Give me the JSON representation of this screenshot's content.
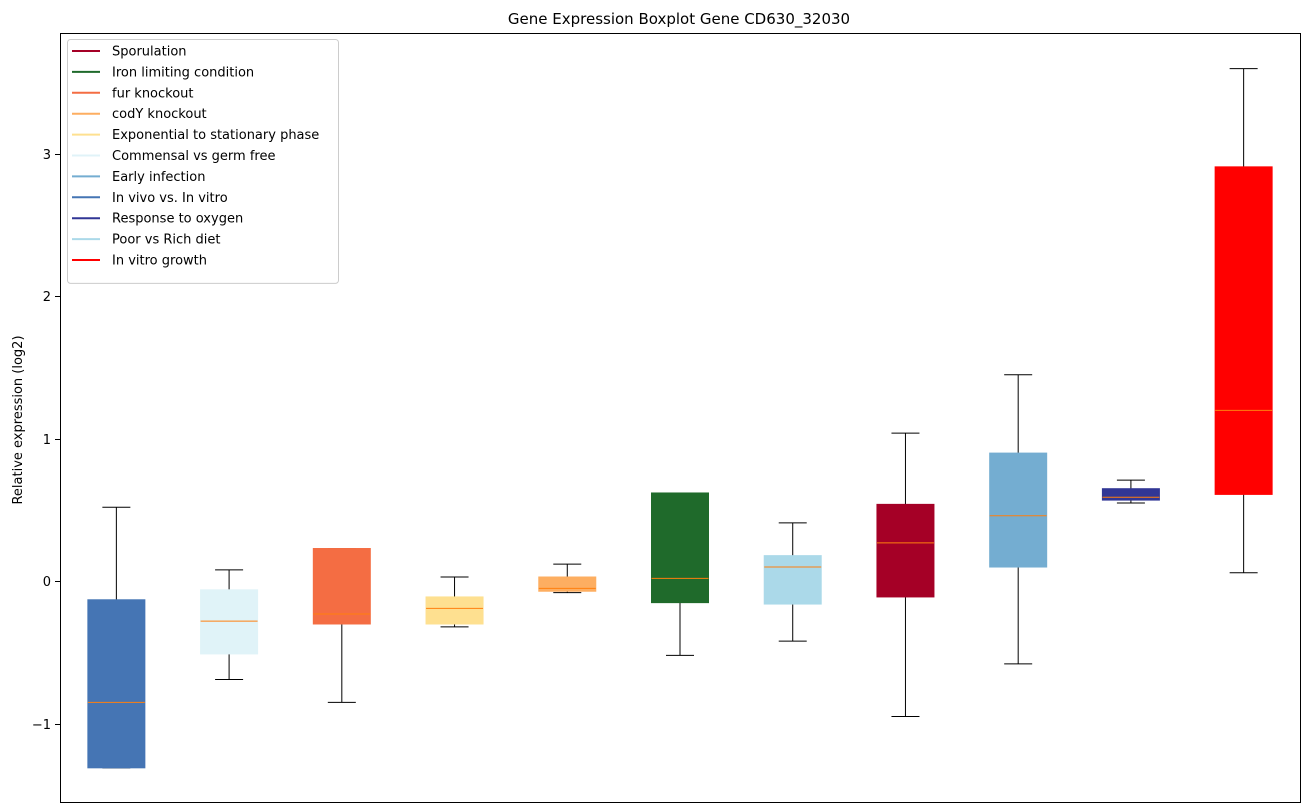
{
  "chart_data": {
    "type": "boxplot",
    "title": "Gene Expression Boxplot Gene CD630_32030",
    "xlabel": "",
    "ylabel": "Relative expression (log2)",
    "ylim": [
      -1.55,
      3.85
    ],
    "yticks": [
      -1,
      0,
      1,
      2,
      3
    ],
    "ytick_labels": [
      "−1",
      "0",
      "1",
      "2",
      "3"
    ],
    "legend_position": "top-left",
    "legend": [
      {
        "label": "Sporulation",
        "color": "#a50026"
      },
      {
        "label": "Iron limiting condition",
        "color": "#1f6a2b"
      },
      {
        "label": "fur knockout",
        "color": "#f46d43"
      },
      {
        "label": "codY knockout",
        "color": "#fdae61"
      },
      {
        "label": "Exponential to stationary phase",
        "color": "#fee090"
      },
      {
        "label": "Commensal vs germ free",
        "color": "#e0f3f8"
      },
      {
        "label": "Early infection",
        "color": "#74add1"
      },
      {
        "label": "In vivo vs. In vitro",
        "color": "#4575b4"
      },
      {
        "label": "Response to oxygen",
        "color": "#313695"
      },
      {
        "label": "Poor vs Rich diet",
        "color": "#abd9e9"
      },
      {
        "label": "In vitro growth",
        "color": "#ff0000"
      }
    ],
    "median_color": "#ff7f0e",
    "boxes": [
      {
        "color": "#4575b4",
        "whisker_low": -1.31,
        "q1": -1.31,
        "median": -0.85,
        "q3": -0.13,
        "whisker_high": 0.52
      },
      {
        "color": "#e0f3f8",
        "whisker_low": -0.69,
        "q1": -0.51,
        "median": -0.28,
        "q3": -0.06,
        "whisker_high": 0.08
      },
      {
        "color": "#f46d43",
        "whisker_low": -0.85,
        "q1": -0.3,
        "median": -0.23,
        "q3": 0.23,
        "whisker_high": 0.23
      },
      {
        "color": "#fee090",
        "whisker_low": -0.32,
        "q1": -0.3,
        "median": -0.19,
        "q3": -0.11,
        "whisker_high": 0.03
      },
      {
        "color": "#fdae61",
        "whisker_low": -0.08,
        "q1": -0.07,
        "median": -0.05,
        "q3": 0.03,
        "whisker_high": 0.12
      },
      {
        "color": "#1f6a2b",
        "whisker_low": -0.52,
        "q1": -0.15,
        "median": 0.02,
        "q3": 0.62,
        "whisker_high": 0.62
      },
      {
        "color": "#abd9e9",
        "whisker_low": -0.42,
        "q1": -0.16,
        "median": 0.1,
        "q3": 0.18,
        "whisker_high": 0.41
      },
      {
        "color": "#a50026",
        "whisker_low": -0.95,
        "q1": -0.11,
        "median": 0.27,
        "q3": 0.54,
        "whisker_high": 1.04
      },
      {
        "color": "#74add1",
        "whisker_low": -0.58,
        "q1": 0.1,
        "median": 0.46,
        "q3": 0.9,
        "whisker_high": 1.45
      },
      {
        "color": "#313695",
        "whisker_low": 0.55,
        "q1": 0.57,
        "median": 0.59,
        "q3": 0.65,
        "whisker_high": 0.71
      },
      {
        "color": "#ff0000",
        "whisker_low": 0.06,
        "q1": 0.61,
        "median": 1.2,
        "q3": 2.91,
        "whisker_high": 3.6
      }
    ]
  }
}
